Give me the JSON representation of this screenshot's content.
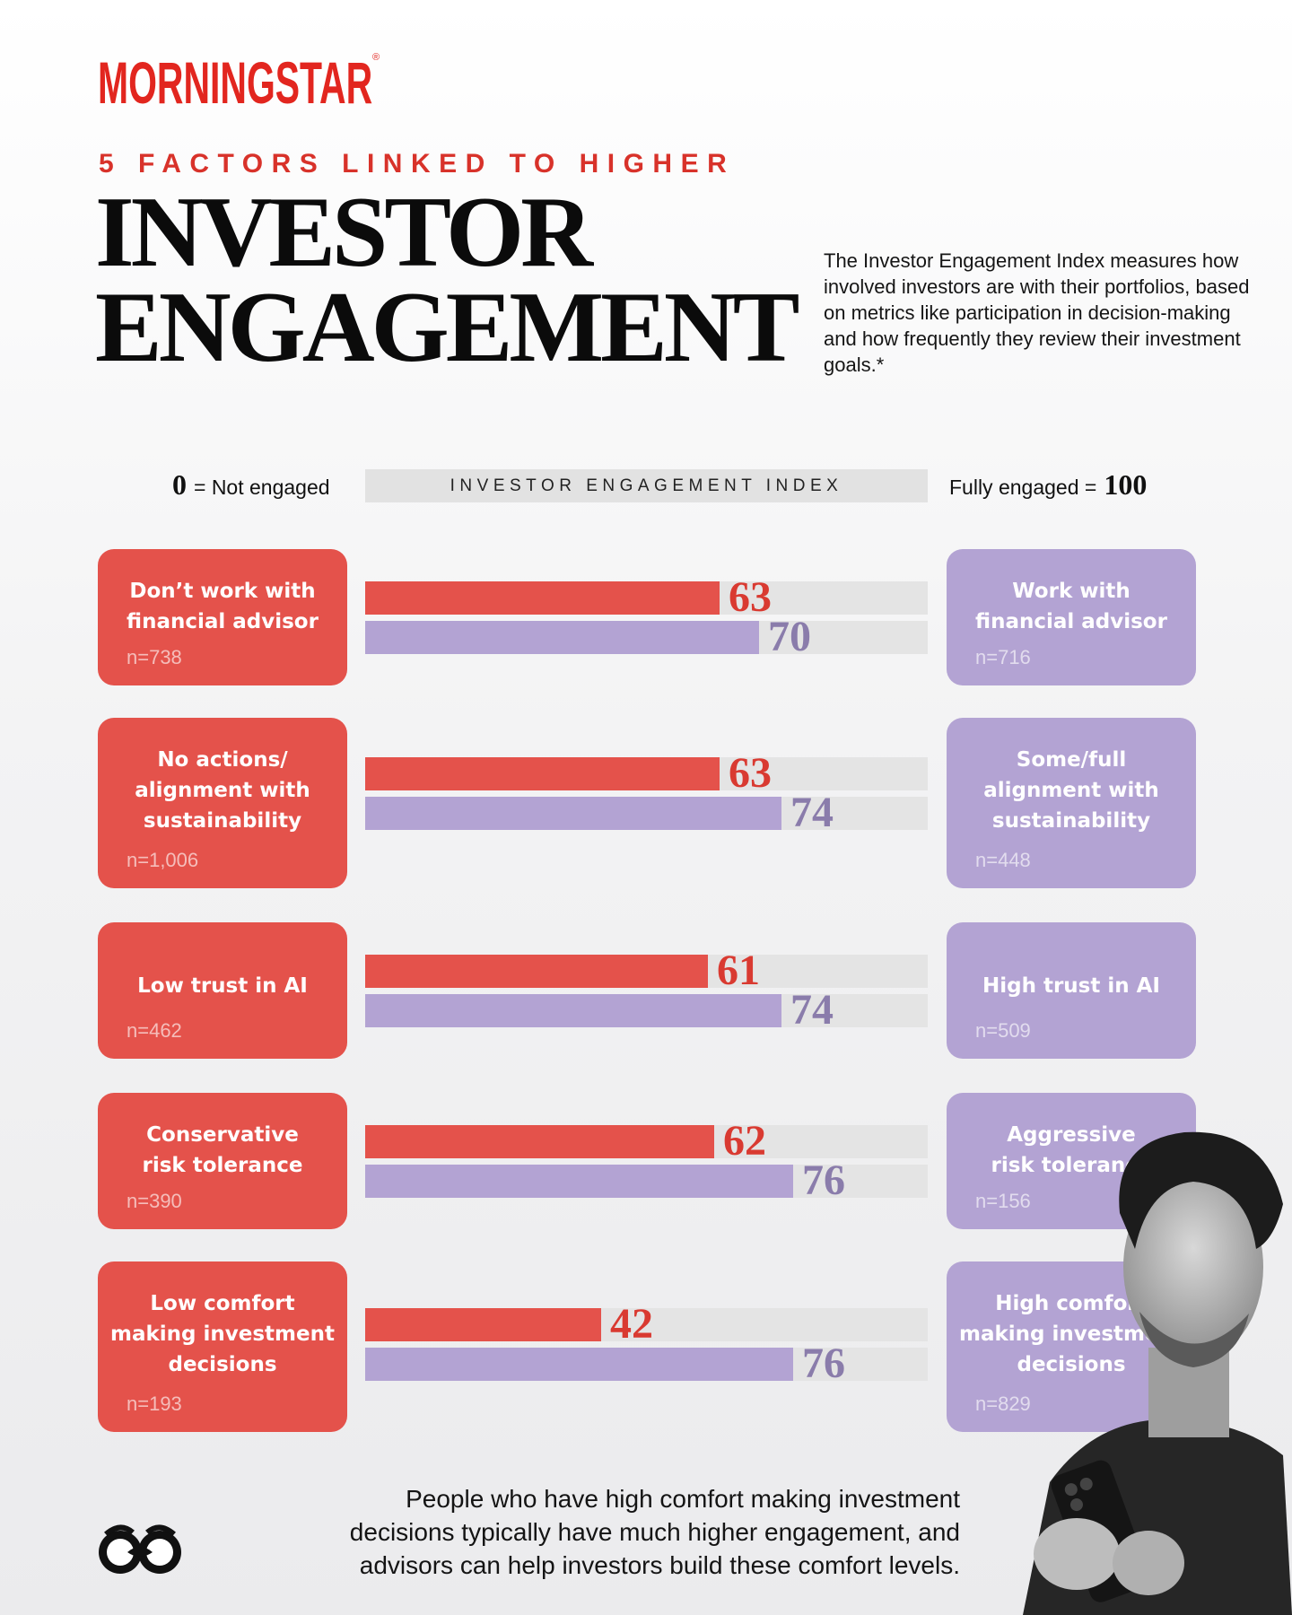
{
  "brand": {
    "logo": "MORNINGSTAR",
    "registered": "®"
  },
  "header": {
    "kicker": "5 FACTORS LINKED TO HIGHER",
    "title_line1": "INVESTOR",
    "title_line2": "ENGAGEMENT",
    "intro": "The Investor Engagement Index measures how involved investors are with their portfolios, based on metrics like participation in decision-making and how frequently they review their investment goals.*"
  },
  "scale": {
    "left_value": "0",
    "left_label": "= Not engaged",
    "center_label": "INVESTOR ENGAGEMENT INDEX",
    "right_label": "Fully engaged =",
    "right_value": "100"
  },
  "colors": {
    "low": "#e4524b",
    "high": "#b3a3d3",
    "track": "#e4e4e4"
  },
  "chart_data": {
    "type": "bar",
    "xlim": [
      0,
      100
    ],
    "rows": [
      {
        "low_label": "Don’t work with\nfinancial advisor",
        "low_n": "n=738",
        "high_label": "Work with\nfinancial advisor",
        "high_n": "n=716",
        "low_value": 63,
        "high_value": 70
      },
      {
        "low_label": "No actions/\nalignment with\nsustainability",
        "low_n": "n=1,006",
        "high_label": "Some/full\nalignment with\nsustainability",
        "high_n": "n=448",
        "low_value": 63,
        "high_value": 74
      },
      {
        "low_label": "Low trust in AI",
        "low_n": "n=462",
        "high_label": "High trust in AI",
        "high_n": "n=509",
        "low_value": 61,
        "high_value": 74
      },
      {
        "low_label": "Conservative\nrisk tolerance",
        "low_n": "n=390",
        "high_label": "Aggressive\nrisk tolerance",
        "high_n": "n=156",
        "low_value": 62,
        "high_value": 76
      },
      {
        "low_label": "Low comfort\nmaking investment\ndecisions",
        "low_n": "n=193",
        "high_label": "High comfort\nmaking investment\ndecisions",
        "high_n": "n=829",
        "low_value": 42,
        "high_value": 76
      }
    ]
  },
  "footer": {
    "closing": "People who have high comfort making investment decisions typically have much higher engagement, and advisors can help investors build these comfort levels."
  },
  "icons": {
    "mascot": "binoculars-owl-icon",
    "photo": "man-with-phone-image"
  }
}
